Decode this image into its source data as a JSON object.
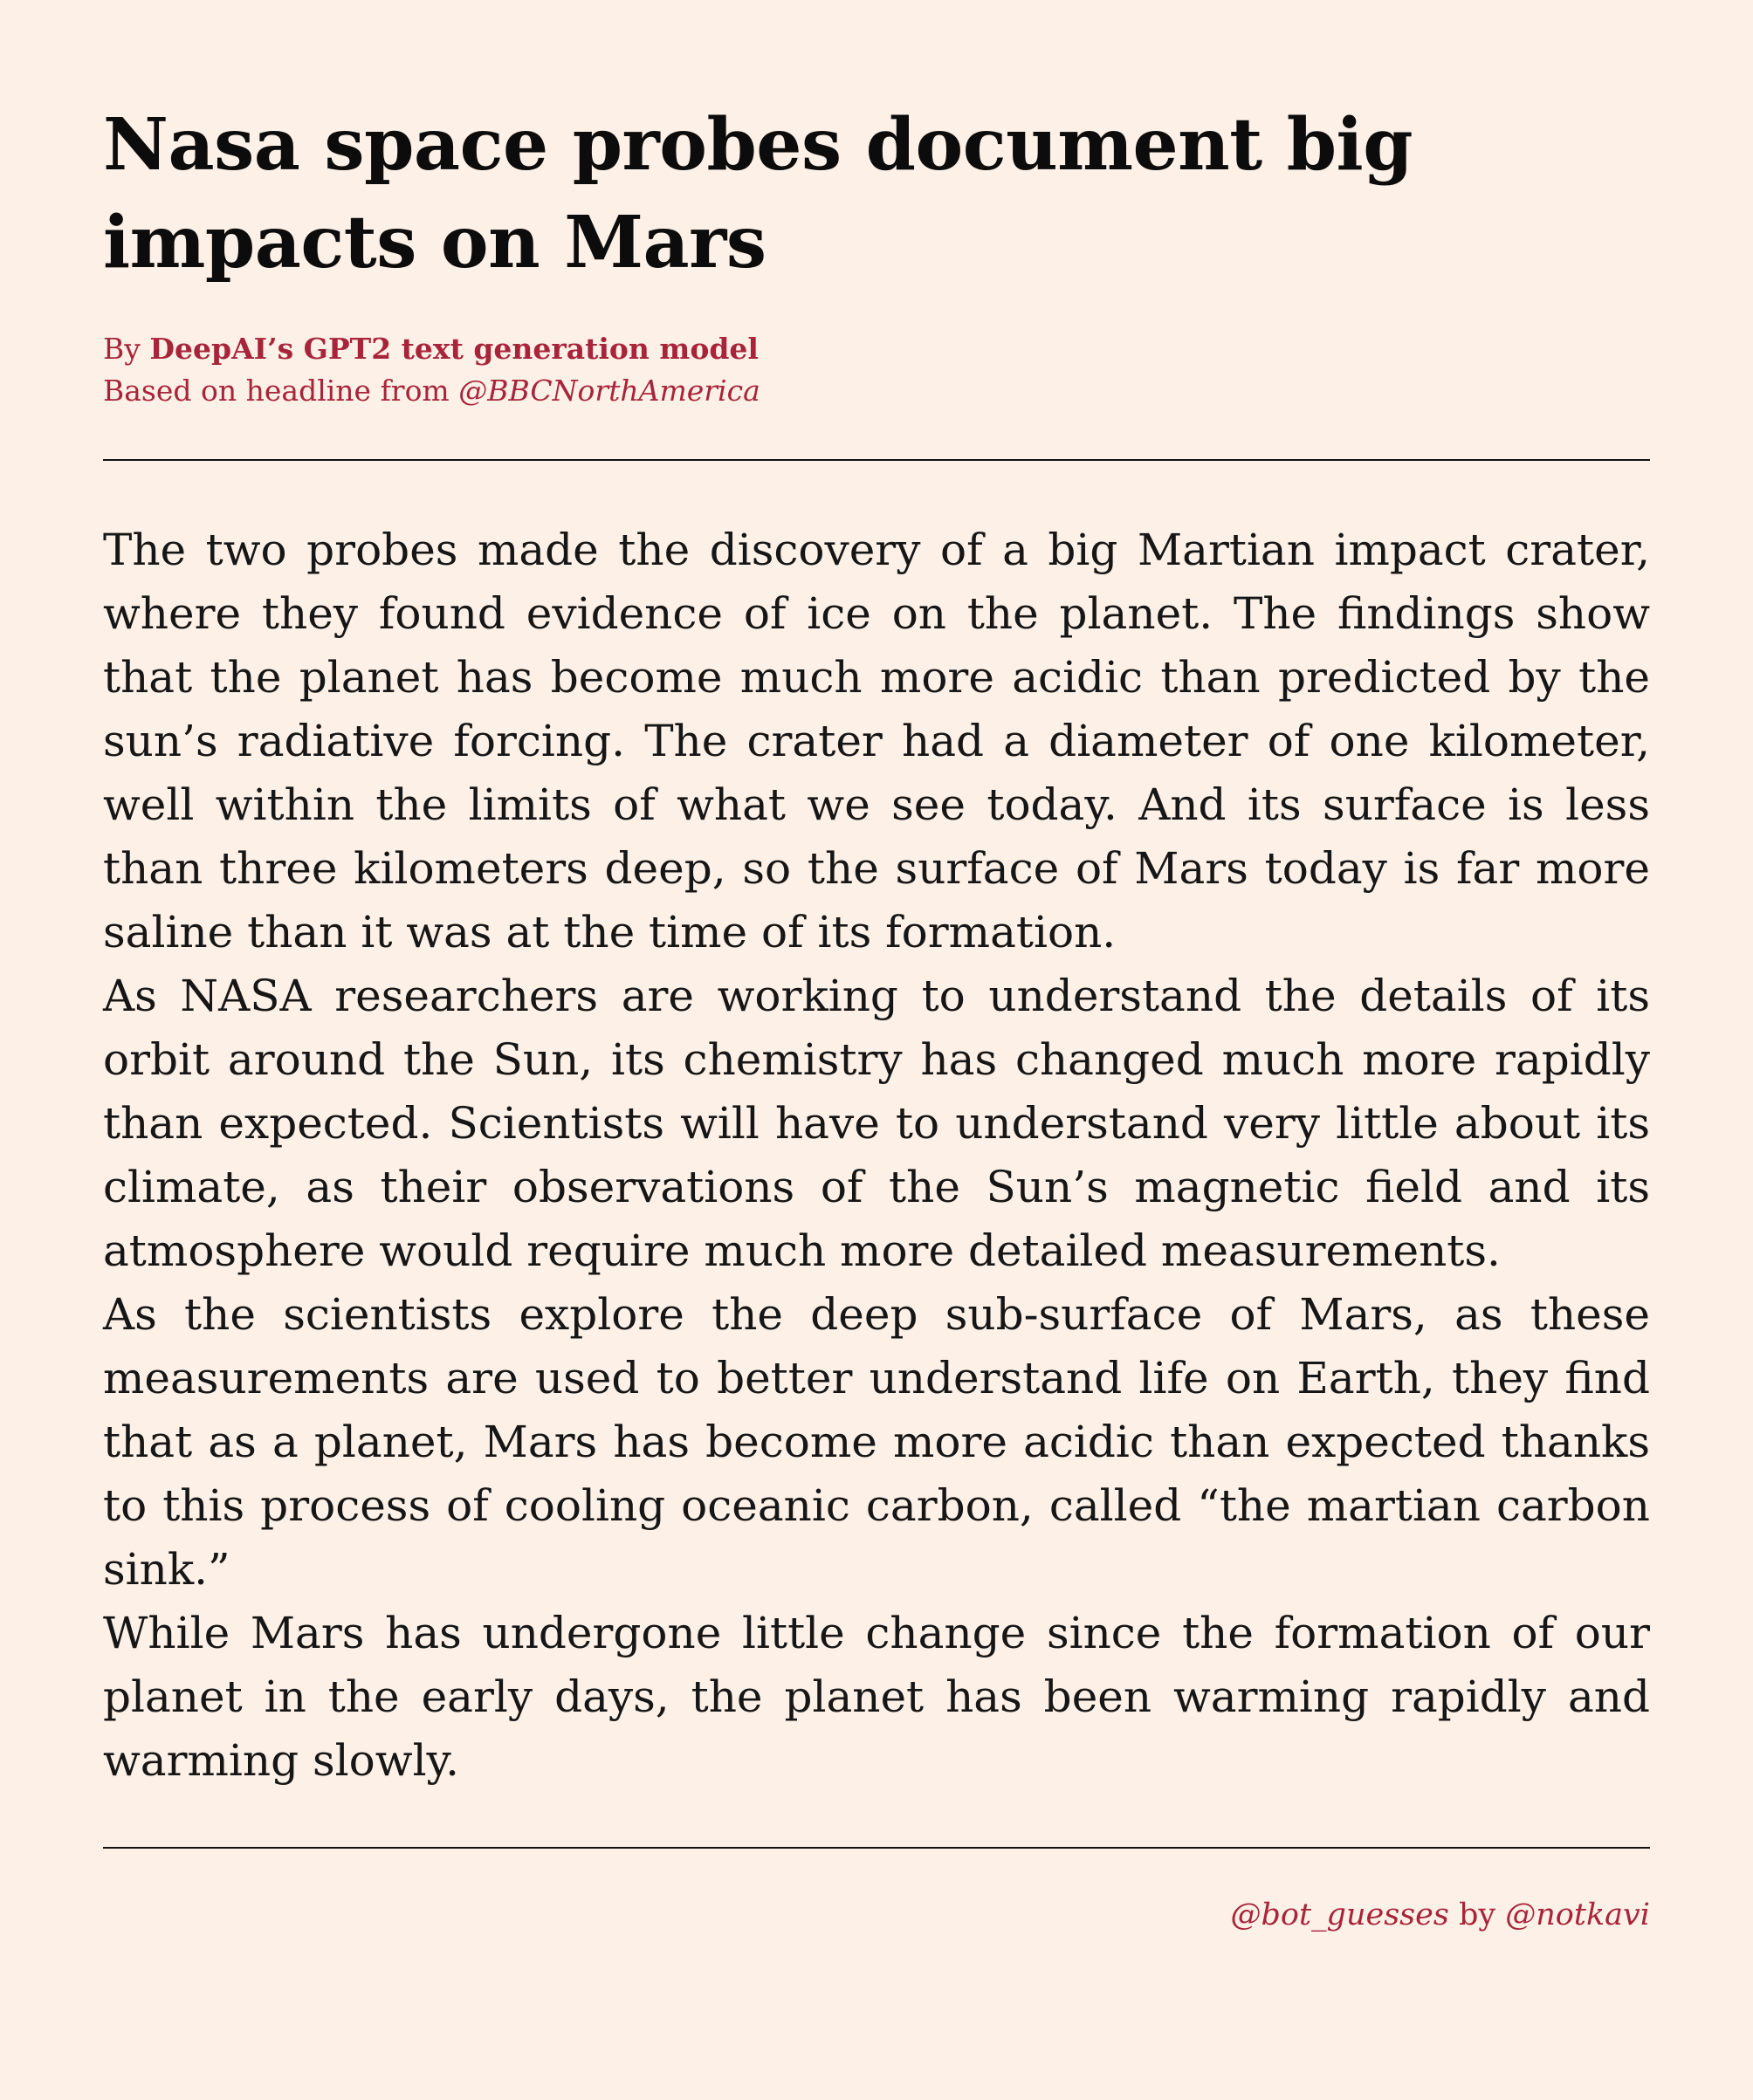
{
  "article": {
    "headline": "Nasa space probes document big impacts on Mars",
    "byline": {
      "prefix": "By ",
      "author": "DeepAI’s GPT2 text generation model",
      "source_prefix": "Based on headline from ",
      "source_handle": "@BBCNorthAmerica"
    },
    "paragraphs": [
      "The two probes made the discovery of a big Martian impact crater, where they found evidence of ice on the planet. The findings show that the planet has become much more acidic than predicted by the sun’s radiative forcing. The crater had a diameter of one kilometer, well within the limits of what we see today. And its surface is less than three kilometers deep, so the surface of Mars today is far more saline than it was at the time of its formation.",
      "As NASA researchers are working to understand the details of its orbit around the Sun, its chemistry has changed much more rapidly than expected. Scientists will have to understand very little about its climate, as their observations of the Sun’s magnetic field and its atmosphere would require much more detailed measurements.",
      "As the scientists explore the deep sub-surface of Mars, as these measurements are used to better understand life on Earth, they find that as a planet, Mars has become more acidic than expected thanks to this process of cooling oceanic carbon, called “the martian carbon sink.”",
      "While Mars has undergone little change since the formation of our planet in the early days, the planet has been warming rapidly and warming slowly."
    ]
  },
  "footer": {
    "bot_handle": "@bot_guesses",
    "by_word": " by ",
    "author_handle": "@notkavi"
  },
  "colors": {
    "background": "#fdf0e6",
    "accent": "#a8243a",
    "text": "#111111"
  }
}
